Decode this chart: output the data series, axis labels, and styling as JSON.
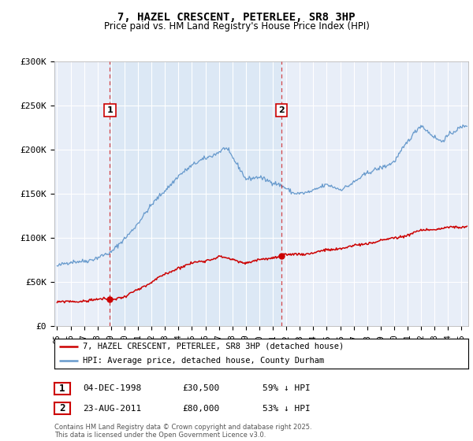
{
  "title": "7, HAZEL CRESCENT, PETERLEE, SR8 3HP",
  "subtitle": "Price paid vs. HM Land Registry's House Price Index (HPI)",
  "ylabel_ticks": [
    "£0",
    "£50K",
    "£100K",
    "£150K",
    "£200K",
    "£250K",
    "£300K"
  ],
  "ylim": [
    0,
    300000
  ],
  "xlim_start": 1994.8,
  "xlim_end": 2025.5,
  "sale1_date": 1998.92,
  "sale1_price": 30500,
  "sale1_label": "1",
  "sale1_text": "04-DEC-1998",
  "sale1_price_str": "£30,500",
  "sale1_pct": "59% ↓ HPI",
  "sale2_date": 2011.64,
  "sale2_price": 80000,
  "sale2_label": "2",
  "sale2_text": "23-AUG-2011",
  "sale2_price_str": "£80,000",
  "sale2_pct": "53% ↓ HPI",
  "red_line_color": "#cc0000",
  "blue_line_color": "#6699cc",
  "shade_color": "#dce8f5",
  "vline_color": "#cc0000",
  "background_color": "#e8eef8",
  "legend_line1": "7, HAZEL CRESCENT, PETERLEE, SR8 3HP (detached house)",
  "legend_line2": "HPI: Average price, detached house, County Durham",
  "copyright": "Contains HM Land Registry data © Crown copyright and database right 2025.\nThis data is licensed under the Open Government Licence v3.0.",
  "title_fontsize": 10,
  "subtitle_fontsize": 9
}
